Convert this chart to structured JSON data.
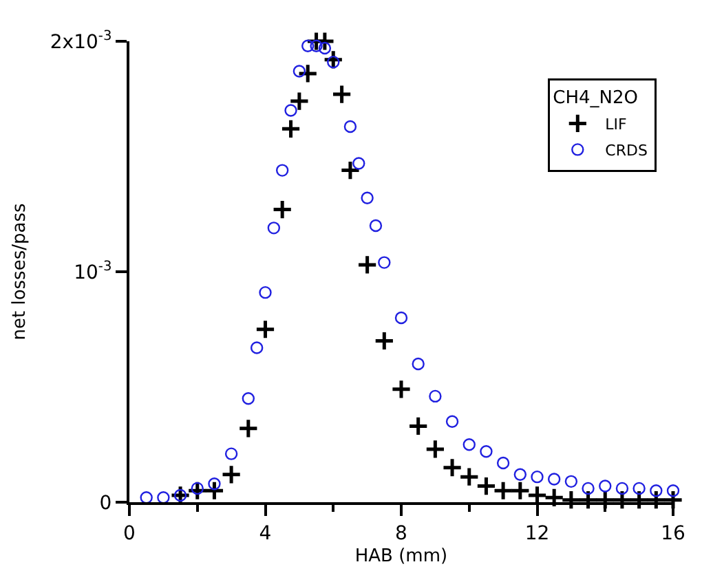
{
  "chart_data": {
    "type": "scatter",
    "xlabel": "HAB (mm)",
    "ylabel": "net losses/pass",
    "legend_title": "CH4_N2O",
    "legend": "top right",
    "xlim": [
      0,
      16
    ],
    "xticks": [
      0,
      4,
      8,
      12,
      16
    ],
    "ylim": [
      0,
      0.002
    ],
    "yticks": [
      {
        "value": 0,
        "label": "0"
      },
      {
        "value": 0.001,
        "label": "10$^{-3}$"
      },
      {
        "value": 0.002,
        "label": "2x10$^{-3}$"
      }
    ],
    "series": [
      {
        "name": "LIF",
        "color": "#000000",
        "marker": "cross",
        "x": [
          1.5,
          2,
          2.5,
          3,
          3.5,
          4,
          4.5,
          4.75,
          5,
          5.25,
          5.5,
          5.75,
          6,
          6.25,
          6.5,
          7,
          7.5,
          8,
          8.5,
          9,
          9.5,
          10,
          10.5,
          11,
          11.5,
          12,
          12.5,
          13,
          13.5,
          14,
          14.5,
          15,
          15.5,
          16
        ],
        "values": [
          3e-05,
          5e-05,
          5e-05,
          0.00012,
          0.00032,
          0.00075,
          0.00127,
          0.00162,
          0.00174,
          0.00186,
          0.002,
          0.002,
          0.00192,
          0.00177,
          0.00144,
          0.00103,
          0.0007,
          0.00049,
          0.00033,
          0.00023,
          0.00015,
          0.00011,
          7e-05,
          5e-05,
          5e-05,
          3e-05,
          2e-05,
          1e-05,
          1e-05,
          1e-05,
          1e-05,
          1e-05,
          1e-05,
          1e-05
        ]
      },
      {
        "name": "CRDS",
        "color": "#2020e0",
        "marker": "circle",
        "x": [
          0.5,
          1,
          1.5,
          2,
          2.5,
          3,
          3.5,
          3.75,
          4,
          4.25,
          4.5,
          4.75,
          5,
          5.25,
          5.5,
          5.75,
          6,
          6.5,
          6.75,
          7,
          7.25,
          7.5,
          8,
          8.5,
          9,
          9.5,
          10,
          10.5,
          11,
          11.5,
          12,
          12.5,
          13,
          13.5,
          14,
          14.5,
          15,
          15.5,
          16
        ],
        "values": [
          2e-05,
          2e-05,
          3e-05,
          6e-05,
          8e-05,
          0.00021,
          0.00045,
          0.00067,
          0.00091,
          0.00119,
          0.00144,
          0.0017,
          0.00187,
          0.00198,
          0.00198,
          0.00197,
          0.00191,
          0.00163,
          0.00147,
          0.00132,
          0.0012,
          0.00104,
          0.0008,
          0.0006,
          0.00046,
          0.00035,
          0.00025,
          0.00022,
          0.00017,
          0.00012,
          0.00011,
          0.0001,
          9e-05,
          6e-05,
          7e-05,
          6e-05,
          6e-05,
          5e-05,
          5e-05
        ]
      }
    ]
  }
}
